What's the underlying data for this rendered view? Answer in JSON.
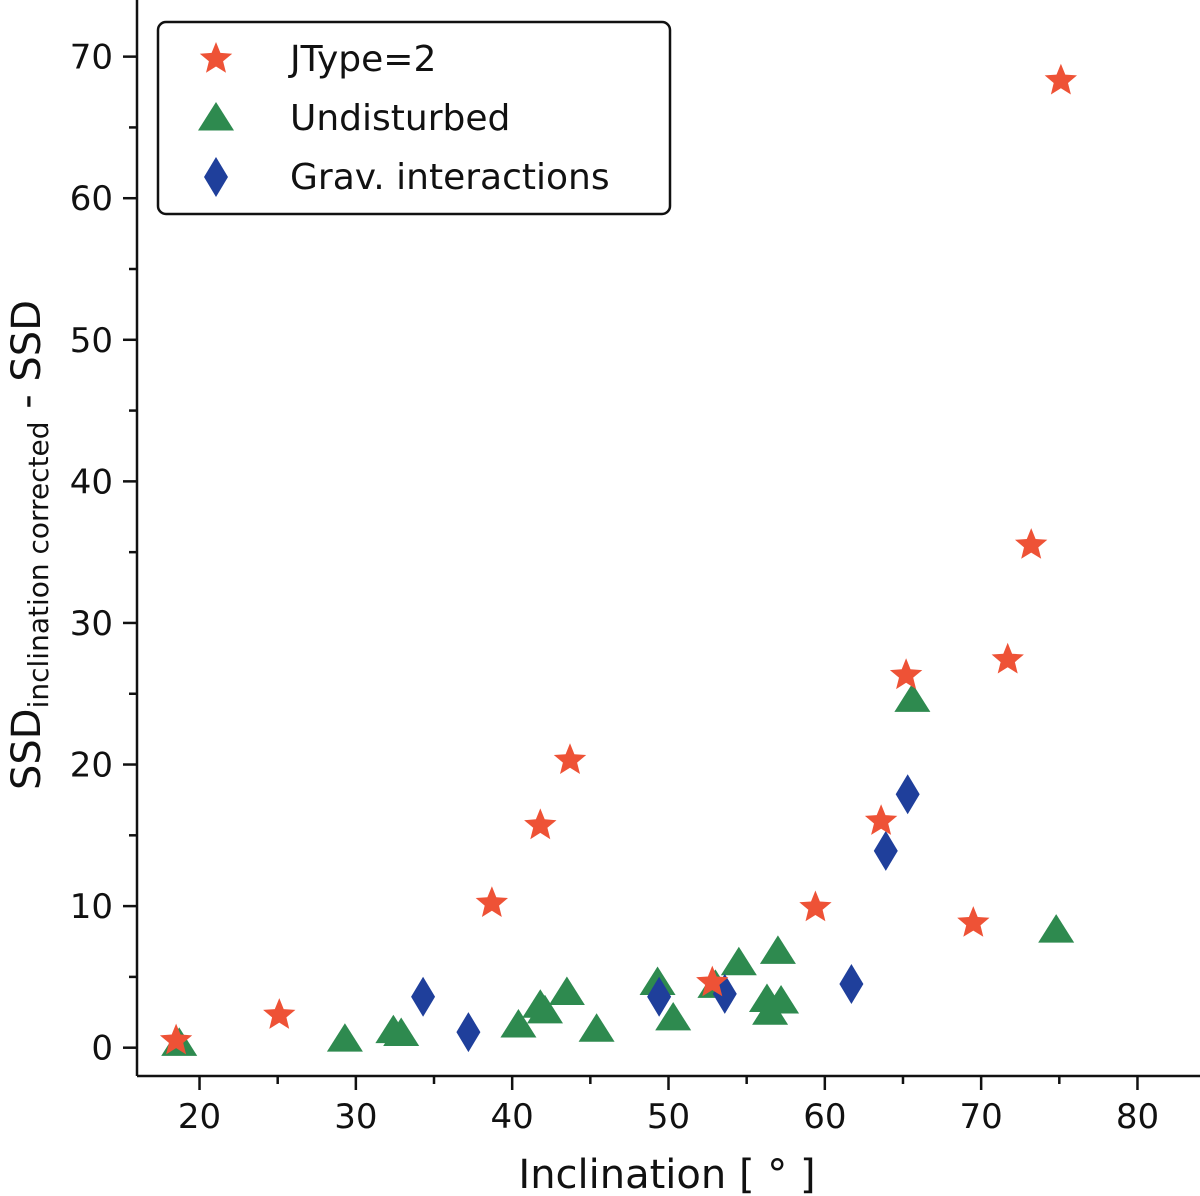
{
  "chart_data": {
    "type": "scatter",
    "title": "",
    "xlabel": "Inclination [ ° ]",
    "ylabel_main": "SSD",
    "ylabel_sub": "inclination corrected",
    "ylabel_suffix": " - SSD",
    "xlim": [
      16,
      84
    ],
    "ylim": [
      -2,
      74
    ],
    "x_ticks": [
      20,
      30,
      40,
      50,
      60,
      70,
      80
    ],
    "y_ticks": [
      0,
      10,
      20,
      30,
      40,
      50,
      60,
      70
    ],
    "x_minor_ticks": [
      25,
      35,
      45,
      55,
      65,
      75
    ],
    "y_minor_ticks": [
      5,
      15,
      25,
      35,
      45,
      55,
      65
    ],
    "legend_position": "top-left",
    "grid": false,
    "series": [
      {
        "name": "JType=2",
        "marker": "star",
        "color": "#ee5236",
        "points": [
          [
            18.5,
            0.5
          ],
          [
            25.1,
            2.3
          ],
          [
            38.7,
            10.2
          ],
          [
            41.8,
            15.7
          ],
          [
            43.7,
            20.3
          ],
          [
            52.8,
            4.6
          ],
          [
            59.4,
            9.9
          ],
          [
            63.6,
            16.0
          ],
          [
            65.2,
            26.3
          ],
          [
            69.5,
            8.8
          ],
          [
            71.7,
            27.4
          ],
          [
            73.2,
            35.5
          ],
          [
            75.1,
            68.3
          ]
        ]
      },
      {
        "name": "Undisturbed",
        "marker": "triangle",
        "color": "#2e8a4f",
        "points": [
          [
            18.7,
            0.3
          ],
          [
            29.3,
            0.6
          ],
          [
            32.4,
            1.2
          ],
          [
            32.9,
            1.0
          ],
          [
            40.4,
            1.6
          ],
          [
            41.8,
            3.0
          ],
          [
            42.1,
            2.6
          ],
          [
            43.5,
            3.9
          ],
          [
            45.4,
            1.3
          ],
          [
            49.3,
            4.6
          ],
          [
            50.3,
            2.1
          ],
          [
            53.0,
            4.4
          ],
          [
            54.5,
            6.0
          ],
          [
            56.3,
            3.4
          ],
          [
            56.5,
            2.5
          ],
          [
            57.0,
            6.8
          ],
          [
            57.2,
            3.3
          ],
          [
            65.6,
            24.6
          ],
          [
            74.8,
            8.3
          ]
        ]
      },
      {
        "name": "Grav. interactions",
        "marker": "diamond",
        "color": "#1f3f9b",
        "points": [
          [
            34.3,
            3.6
          ],
          [
            37.2,
            1.1
          ],
          [
            49.4,
            3.6
          ],
          [
            53.6,
            3.8
          ],
          [
            61.7,
            4.5
          ],
          [
            63.9,
            13.9
          ],
          [
            65.3,
            17.9
          ]
        ]
      }
    ]
  }
}
